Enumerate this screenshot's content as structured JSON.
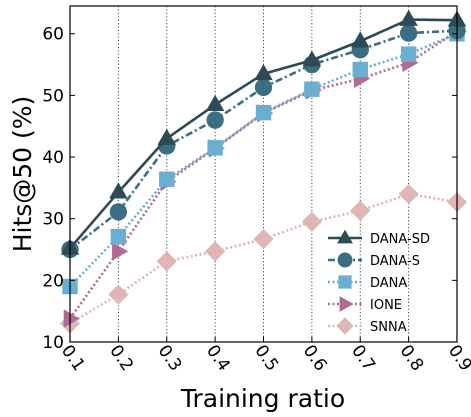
{
  "chart_data": {
    "type": "line",
    "xlabel": "Training ratio",
    "ylabel": "Hits@50 (%)",
    "x": [
      0.1,
      0.2,
      0.3,
      0.4,
      0.5,
      0.6,
      0.7,
      0.8,
      0.9
    ],
    "x_tick_labels": [
      "0.1",
      "0.2",
      "0.3",
      "0.4",
      "0.5",
      "0.6",
      "0.7",
      "0.8",
      "0.9"
    ],
    "y_tick_labels": [
      "10",
      "20",
      "30",
      "40",
      "50",
      "60"
    ],
    "xlim": [
      0.1,
      0.9
    ],
    "ylim": [
      10,
      64.5
    ],
    "y_ticks": [
      10,
      20,
      30,
      40,
      50,
      60
    ],
    "grid": "vertical dotted lines at x ticks",
    "legend_position": "lower-right",
    "series": [
      {
        "name": "DANA-SD",
        "values": [
          25.2,
          34.3,
          43.0,
          48.5,
          53.5,
          55.7,
          58.8,
          62.3,
          62.2
        ],
        "color": "#2e4a57",
        "marker": "triangle",
        "line": "solid"
      },
      {
        "name": "DANA-S",
        "values": [
          25.0,
          31.1,
          41.8,
          46.0,
          51.3,
          55.0,
          57.4,
          60.1,
          60.5
        ],
        "color": "#3b6e82",
        "marker": "circle",
        "line": "dashdot"
      },
      {
        "name": "DANA",
        "values": [
          19.0,
          27.1,
          36.4,
          41.5,
          47.2,
          51.0,
          54.2,
          56.7,
          60.0
        ],
        "color": "#6aaed1",
        "marker": "square",
        "line": "dotted"
      },
      {
        "name": "IONE",
        "values": [
          13.8,
          24.7,
          36.0,
          41.4,
          47.1,
          50.8,
          52.7,
          55.3,
          60.4
        ],
        "color": "#b06a96",
        "marker": "triangle-right",
        "line": "dotted"
      },
      {
        "name": "SNNA",
        "values": [
          13.0,
          17.7,
          23.1,
          24.7,
          26.7,
          29.5,
          31.3,
          34.0,
          32.7
        ],
        "color": "#e0b5b5",
        "marker": "diamond",
        "line": "dotted"
      }
    ]
  }
}
